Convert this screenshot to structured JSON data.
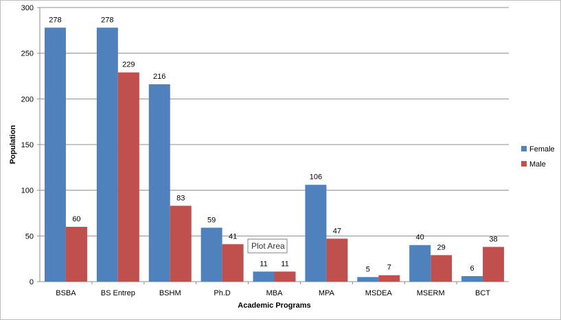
{
  "chart_data": {
    "type": "bar",
    "categories": [
      "BSBA",
      "BS Entrep",
      "BSHM",
      "Ph.D",
      "MBA",
      "MPA",
      "MSDEA",
      "MSERM",
      "BCT"
    ],
    "series": [
      {
        "name": "Female",
        "color": "#4f81bd",
        "values": [
          278,
          278,
          216,
          59,
          11,
          106,
          5,
          40,
          6
        ]
      },
      {
        "name": "Male",
        "color": "#c0504d",
        "values": [
          60,
          229,
          83,
          41,
          11,
          47,
          7,
          29,
          38
        ]
      }
    ],
    "title": "",
    "xlabel": "Academic Programs",
    "ylabel": "Population",
    "ylim": [
      0,
      300
    ],
    "yticks": [
      0,
      50,
      100,
      150,
      200,
      250,
      300
    ],
    "grid": true,
    "legend_position": "right"
  },
  "tooltip": {
    "text": "Plot Area"
  }
}
